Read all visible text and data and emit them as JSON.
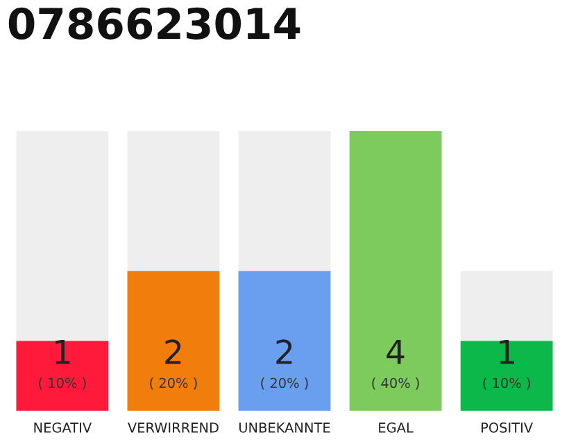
{
  "chart_data": {
    "type": "bar",
    "title": "0786623014",
    "categories": [
      "NEGATIV",
      "VERWIRREND",
      "UNBEKANNTE",
      "EGAL",
      "POSITIV"
    ],
    "stacked": true,
    "series": [
      {
        "colors": [
          "#ff1a3c",
          "#f07d0c",
          "#6a9ff0",
          "#7dcb5d",
          "#0db84a"
        ],
        "values": [
          1,
          2,
          2,
          4,
          1
        ],
        "value_labels": [
          "1",
          "2",
          "2",
          "4",
          "1"
        ]
      },
      {
        "color": "#eeeeee",
        "values": [
          3,
          2,
          2,
          0,
          1
        ]
      }
    ],
    "annotations": [
      "( 10% )",
      "( 20% )",
      "( 20% )",
      "( 40% )",
      "( 10% )"
    ],
    "grid": false,
    "legend": false
  }
}
